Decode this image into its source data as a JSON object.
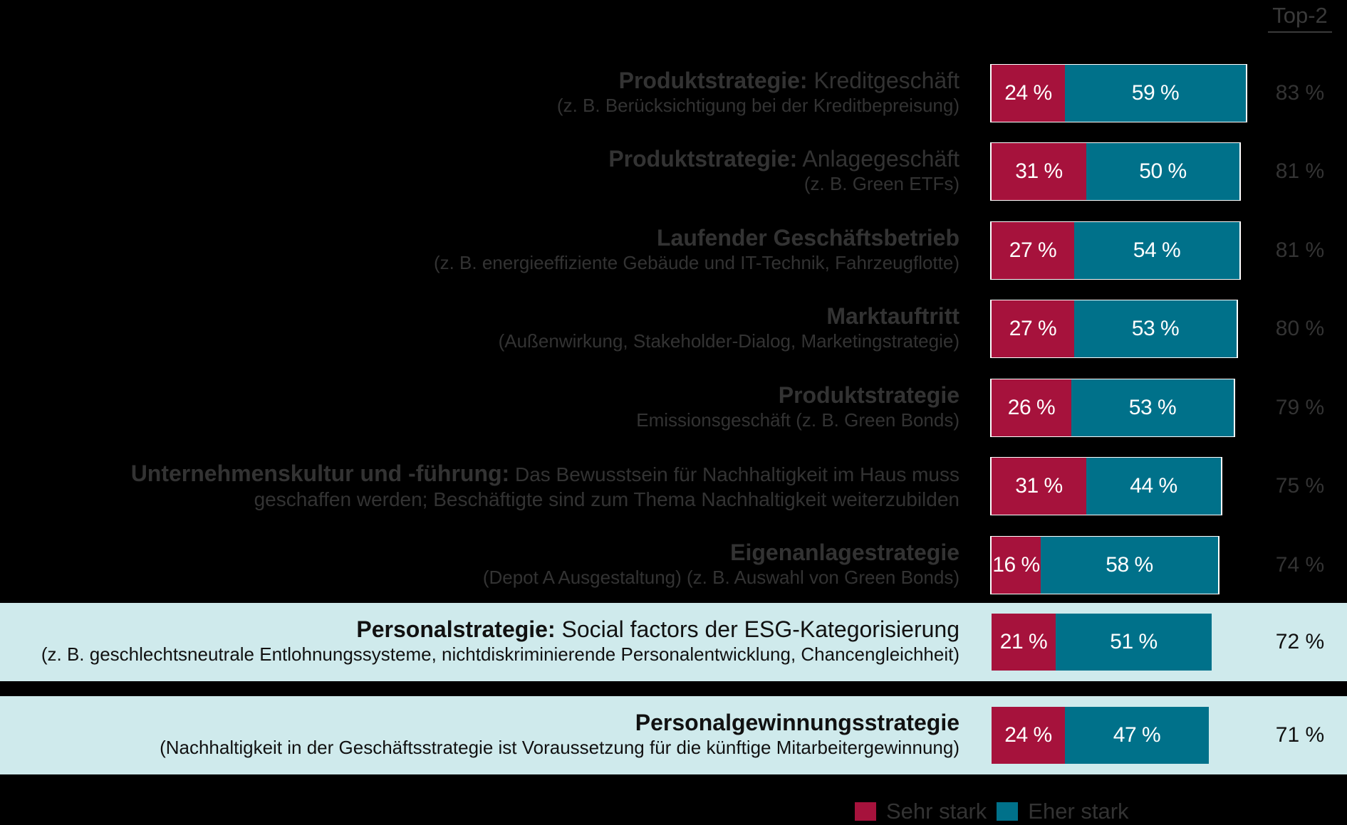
{
  "chart_data": {
    "type": "bar",
    "orientation": "horizontal",
    "stacked": true,
    "top2_header": "Top-2",
    "series": [
      {
        "name": "Sehr stark",
        "color": "#a6123c",
        "values": [
          24,
          31,
          27,
          27,
          26,
          31,
          16,
          21,
          24
        ]
      },
      {
        "name": "Eher stark",
        "color": "#00718a",
        "values": [
          59,
          50,
          54,
          53,
          53,
          44,
          58,
          51,
          47
        ]
      }
    ],
    "value_labels": {
      "sehr_stark": [
        "24 %",
        "31 %",
        "27 %",
        "27 %",
        "26 %",
        "31 %",
        "16 %",
        "21 %",
        "24 %"
      ],
      "eher_stark": [
        "59 %",
        "50 %",
        "54 %",
        "53 %",
        "53 %",
        "44 %",
        "58 %",
        "51 %",
        "47 %"
      ]
    },
    "top2": [
      "83 %",
      "81 %",
      "81 %",
      "80 %",
      "79 %",
      "75 %",
      "74 %",
      "72 %",
      "71 %"
    ],
    "categories": [
      {
        "title": "Produktstrategie:",
        "title_rest": " Kreditgeschäft",
        "sub": "(z. B. Berücksichtigung bei der Kreditbepreisung)",
        "highlight": false
      },
      {
        "title": "Produktstrategie:",
        "title_rest": " Anlagegeschäft",
        "sub": "(z. B. Green ETFs)",
        "highlight": false
      },
      {
        "title": "Laufender Geschäftsbetrieb",
        "title_rest": "",
        "sub": "(z. B. energieeffiziente Gebäude und IT-Technik, Fahrzeugflotte)",
        "highlight": false
      },
      {
        "title": "Marktauftritt",
        "title_rest": "",
        "sub": "(Außenwirkung, Stakeholder-Dialog, Marketingstrategie)",
        "highlight": false
      },
      {
        "title": "Produktstrategie",
        "title_rest": "",
        "sub": "Emissionsgeschäft (z. B. Green Bonds)",
        "highlight": false
      },
      {
        "title": "Unternehmenskultur und -führung:",
        "title_rest": " Das Bewusstsein für Nachhaltigkeit im Haus muss",
        "sub": "geschaffen werden; Beschäftigte sind zum Thema Nachhaltigkeit weiterzubilden",
        "highlight": false,
        "inline": true
      },
      {
        "title": "Eigenanlagestrategie",
        "title_rest": "",
        "sub": "(Depot A Ausgestaltung) (z. B. Auswahl von Green Bonds)",
        "highlight": false
      },
      {
        "title": "Personalstrategie:",
        "title_rest": " Social factors der ESG-Kategorisierung",
        "sub": "(z. B. geschlechtsneutrale Entlohnungssysteme, nichtdiskriminierende Personalentwicklung, Chancengleichheit)",
        "highlight": true
      },
      {
        "title": "Personalgewinnungsstrategie",
        "title_rest": "",
        "sub": "(Nachhaltigkeit in der Geschäftsstrategie ist Voraussetzung für die künftige Mitarbeitergewinnung)",
        "highlight": true
      }
    ],
    "legend": [
      {
        "label": "Sehr stark",
        "color": "#a6123c"
      },
      {
        "label": "Eher stark",
        "color": "#00718a"
      }
    ],
    "legend_position": "bottom-right",
    "grid": false
  }
}
